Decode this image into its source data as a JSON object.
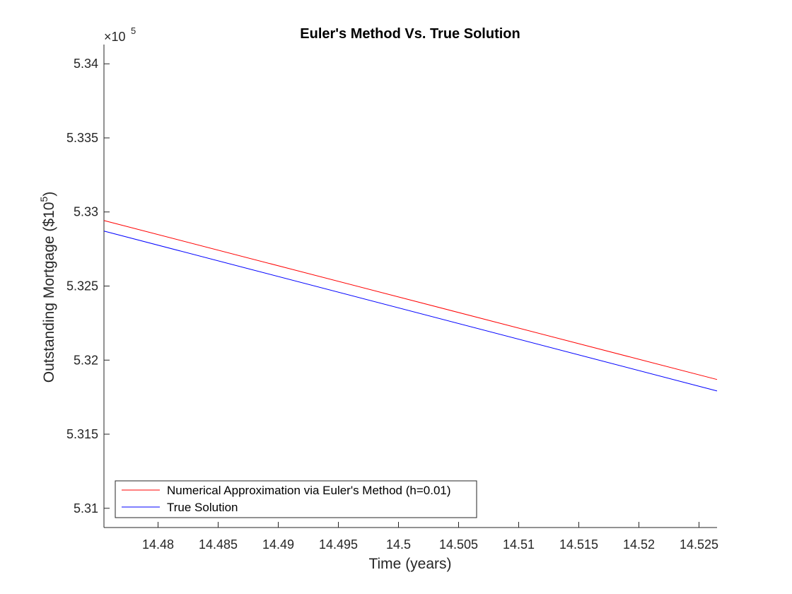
{
  "chart_data": {
    "type": "line",
    "title": "Euler's Method Vs. True Solution",
    "xlabel": "Time (years)",
    "ylabel": "Outstanding Mortgage ($10",
    "ylabel_superscript": "5",
    "ylabel_suffix": ")",
    "y_exponent_label": "×10",
    "y_exponent_power": "5",
    "xlim": [
      14.4755,
      14.5265
    ],
    "ylim": [
      5.3087,
      5.3413
    ],
    "x_ticks": [
      14.48,
      14.485,
      14.49,
      14.495,
      14.5,
      14.505,
      14.51,
      14.515,
      14.52,
      14.525
    ],
    "x_tick_labels": [
      "14.48",
      "14.485",
      "14.49",
      "14.495",
      "14.5",
      "14.505",
      "14.51",
      "14.515",
      "14.52",
      "14.525"
    ],
    "y_ticks": [
      5.31,
      5.315,
      5.32,
      5.325,
      5.33,
      5.335,
      5.34
    ],
    "y_tick_labels": [
      "5.31",
      "5.315",
      "5.32",
      "5.325",
      "5.33",
      "5.335",
      "5.34"
    ],
    "grid": false,
    "legend_placement": "bottom-left",
    "series": [
      {
        "name": "Numerical Approximation via Euler's Method (h=0.01)",
        "color": "#ff0000",
        "x": [
          14.4755,
          14.5265
        ],
        "y": [
          5.32942,
          5.31869
        ]
      },
      {
        "name": "True Solution",
        "color": "#0000ff",
        "x": [
          14.4755,
          14.5265
        ],
        "y": [
          5.32871,
          5.31792
        ]
      }
    ]
  }
}
